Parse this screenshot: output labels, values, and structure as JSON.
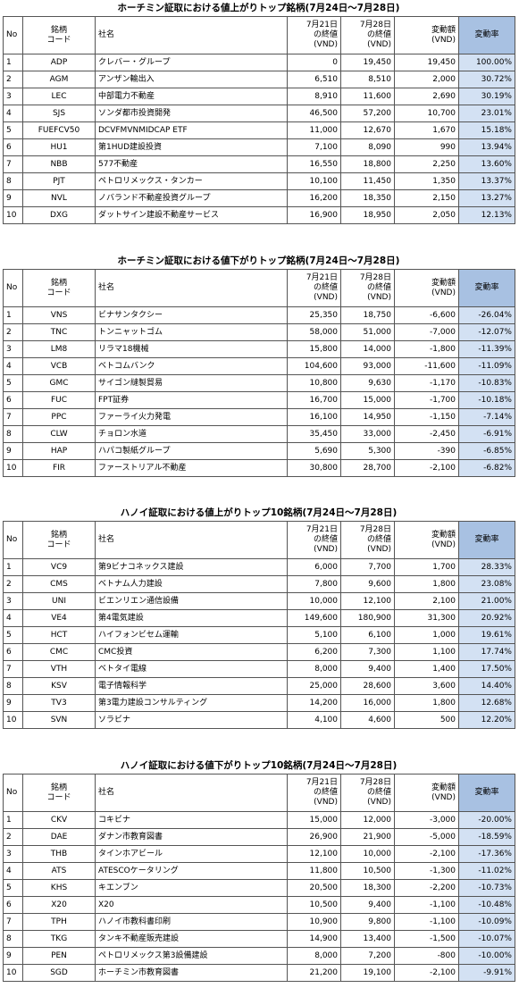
{
  "tables": [
    {
      "title": "ホーチミン証取における値上がりトップ銘柄(7月24日～7月28日)",
      "headers": [
        [
          "No"
        ],
        [
          "銘柄",
          "コード"
        ],
        [
          "社名"
        ],
        [
          "7月21日",
          "の終値",
          "(VND)"
        ],
        [
          "7月28日",
          "の終値",
          "(VND)"
        ],
        [
          "変動額",
          "(VND)"
        ],
        [
          "変動率"
        ]
      ],
      "rows": [
        [
          "1",
          "ADP",
          "クレバー・グループ",
          "0",
          "19,450",
          "19,450",
          "100.00%"
        ],
        [
          "2",
          "AGM",
          "アンザン輸出入",
          "6,510",
          "8,510",
          "2,000",
          "30.72%"
        ],
        [
          "3",
          "LEC",
          "中部電力不動産",
          "8,910",
          "11,600",
          "2,690",
          "30.19%"
        ],
        [
          "4",
          "SJS",
          "ソンダ都市投資開発",
          "46,500",
          "57,200",
          "10,700",
          "23.01%"
        ],
        [
          "5",
          "FUEFCV50",
          "DCVFMVNMIDCAP ETF",
          "11,000",
          "12,670",
          "1,670",
          "15.18%"
        ],
        [
          "6",
          "HU1",
          "第1HUD建設投資",
          "7,100",
          "8,090",
          "990",
          "13.94%"
        ],
        [
          "7",
          "NBB",
          "577不動産",
          "16,550",
          "18,800",
          "2,250",
          "13.60%"
        ],
        [
          "8",
          "PJT",
          "ペトロリメックス・タンカー",
          "10,100",
          "11,450",
          "1,350",
          "13.37%"
        ],
        [
          "9",
          "NVL",
          "ノバランド不動産投資グループ",
          "16,200",
          "18,350",
          "2,150",
          "13.27%"
        ],
        [
          "10",
          "DXG",
          "ダットサイン建設不動産サービス",
          "16,900",
          "18,950",
          "2,050",
          "12.13%"
        ]
      ]
    },
    {
      "title": "ホーチミン証取における値下がりトップ銘柄(7月24日～7月28日)",
      "headers": [
        [
          "No"
        ],
        [
          "銘柄",
          "コード"
        ],
        [
          "社名"
        ],
        [
          "7月21日",
          "の終値",
          "(VND)"
        ],
        [
          "7月28日",
          "の終値",
          "(VND)"
        ],
        [
          "変動額",
          "(VND)"
        ],
        [
          "変動率"
        ]
      ],
      "rows": [
        [
          "1",
          "VNS",
          "ビナサンタクシー",
          "25,350",
          "18,750",
          "-6,600",
          "-26.04%"
        ],
        [
          "2",
          "TNC",
          "トンニャットゴム",
          "58,000",
          "51,000",
          "-7,000",
          "-12.07%"
        ],
        [
          "3",
          "LM8",
          "リラマ18機械",
          "15,800",
          "14,000",
          "-1,800",
          "-11.39%"
        ],
        [
          "4",
          "VCB",
          "ベトコムバンク",
          "104,600",
          "93,000",
          "-11,600",
          "-11.09%"
        ],
        [
          "5",
          "GMC",
          "サイゴン縫製貿易",
          "10,800",
          "9,630",
          "-1,170",
          "-10.83%"
        ],
        [
          "6",
          "FUC",
          "FPT証券",
          "16,700",
          "15,000",
          "-1,700",
          "-10.18%"
        ],
        [
          "7",
          "PPC",
          "ファーライ火力発電",
          "16,100",
          "14,950",
          "-1,150",
          "-7.14%"
        ],
        [
          "8",
          "CLW",
          "チョロン水道",
          "35,450",
          "33,000",
          "-2,450",
          "-6.91%"
        ],
        [
          "9",
          "HAP",
          "ハパコ製紙グループ",
          "5,690",
          "5,300",
          "-390",
          "-6.85%"
        ],
        [
          "10",
          "FIR",
          "ファーストリアル不動産",
          "30,800",
          "28,700",
          "-2,100",
          "-6.82%"
        ]
      ]
    },
    {
      "title": "ハノイ証取における値上がりトップ10銘柄(7月24日～7月28日)",
      "headers": [
        [
          "No"
        ],
        [
          "銘柄",
          "コード"
        ],
        [
          "社名"
        ],
        [
          "7月21日",
          "の終値",
          "(VND)"
        ],
        [
          "7月28日",
          "の終値",
          "(VND)"
        ],
        [
          "変動額",
          "(VND)"
        ],
        [
          "変動率"
        ]
      ],
      "rows": [
        [
          "1",
          "VC9",
          "第9ビナコネックス建設",
          "6,000",
          "7,700",
          "1,700",
          "28.33%"
        ],
        [
          "2",
          "CMS",
          "ベトナム人力建設",
          "7,800",
          "9,600",
          "1,800",
          "23.08%"
        ],
        [
          "3",
          "UNI",
          "ビエンリエン通信設備",
          "10,000",
          "12,100",
          "2,100",
          "21.00%"
        ],
        [
          "4",
          "VE4",
          "第4電気建設",
          "149,600",
          "180,900",
          "31,300",
          "20.92%"
        ],
        [
          "5",
          "HCT",
          "ハイフォンビセム運輸",
          "5,100",
          "6,100",
          "1,000",
          "19.61%"
        ],
        [
          "6",
          "CMC",
          "CMC投資",
          "6,200",
          "7,300",
          "1,100",
          "17.74%"
        ],
        [
          "7",
          "VTH",
          "ベトタイ電線",
          "8,000",
          "9,400",
          "1,400",
          "17.50%"
        ],
        [
          "8",
          "KSV",
          "電子情報科学",
          "25,000",
          "28,600",
          "3,600",
          "14.40%"
        ],
        [
          "9",
          "TV3",
          "第3電力建設コンサルティング",
          "14,200",
          "16,000",
          "1,800",
          "12.68%"
        ],
        [
          "10",
          "SVN",
          "ソラビナ",
          "4,100",
          "4,600",
          "500",
          "12.20%"
        ]
      ]
    },
    {
      "title": "ハノイ証取における値下がりトップ10銘柄(7月24日～7月28日)",
      "headers": [
        [
          "No"
        ],
        [
          "銘柄",
          "コード"
        ],
        [
          "社名"
        ],
        [
          "7月21日",
          "の終値",
          "(VND)"
        ],
        [
          "7月28日",
          "の終値",
          "(VND)"
        ],
        [
          "変動額",
          "(VND)"
        ],
        [
          "変動率"
        ]
      ],
      "rows": [
        [
          "1",
          "CKV",
          "コキビナ",
          "15,000",
          "12,000",
          "-3,000",
          "-20.00%"
        ],
        [
          "2",
          "DAE",
          "ダナン市教育図書",
          "26,900",
          "21,900",
          "-5,000",
          "-18.59%"
        ],
        [
          "3",
          "THB",
          "タインホアビール",
          "12,100",
          "10,000",
          "-2,100",
          "-17.36%"
        ],
        [
          "4",
          "ATS",
          "ATESCOケータリング",
          "11,800",
          "10,500",
          "-1,300",
          "-11.02%"
        ],
        [
          "5",
          "KHS",
          "キエンブン",
          "20,500",
          "18,300",
          "-2,200",
          "-10.73%"
        ],
        [
          "6",
          "X20",
          "X20",
          "10,500",
          "9,400",
          "-1,100",
          "-10.48%"
        ],
        [
          "7",
          "TPH",
          "ハノイ市教科書印刷",
          "10,900",
          "9,800",
          "-1,100",
          "-10.09%"
        ],
        [
          "8",
          "TKG",
          "タンキ不動産販売建設",
          "14,900",
          "13,400",
          "-1,500",
          "-10.07%"
        ],
        [
          "9",
          "PEN",
          "ペトロリメックス第3設備建設",
          "8,000",
          "7,200",
          "-800",
          "-10.00%"
        ],
        [
          "10",
          "SGD",
          "ホーチミン市教育図書",
          "21,200",
          "19,100",
          "-2,100",
          "-9.91%"
        ]
      ]
    }
  ]
}
